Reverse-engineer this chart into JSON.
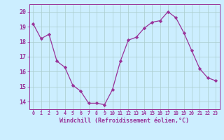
{
  "x": [
    0,
    1,
    2,
    3,
    4,
    5,
    6,
    7,
    8,
    9,
    10,
    11,
    12,
    13,
    14,
    15,
    16,
    17,
    18,
    19,
    20,
    21,
    22,
    23
  ],
  "y": [
    19.2,
    18.2,
    18.5,
    16.7,
    16.3,
    15.1,
    14.7,
    13.9,
    13.9,
    13.8,
    14.8,
    16.7,
    18.1,
    18.3,
    18.9,
    19.3,
    19.4,
    20.0,
    19.6,
    18.6,
    17.4,
    16.2,
    15.6,
    15.4
  ],
  "xlabel": "Windchill (Refroidissement éolien,°C)",
  "ylim": [
    13.5,
    20.5
  ],
  "yticks": [
    14,
    15,
    16,
    17,
    18,
    19,
    20
  ],
  "xticks": [
    0,
    1,
    2,
    3,
    4,
    5,
    6,
    7,
    8,
    9,
    10,
    11,
    12,
    13,
    14,
    15,
    16,
    17,
    18,
    19,
    20,
    21,
    22,
    23
  ],
  "xtick_labels": [
    "0",
    "1",
    "2",
    "3",
    "4",
    "5",
    "6",
    "7",
    "8",
    "9",
    "10",
    "11",
    "12",
    "13",
    "14",
    "15",
    "16",
    "17",
    "18",
    "19",
    "20",
    "21",
    "22",
    "23"
  ],
  "line_color": "#993399",
  "marker": "D",
  "marker_size": 2.2,
  "bg_color": "#cceeff",
  "grid_color": "#aacccc",
  "xlabel_fontsize": 6.0,
  "xtick_fontsize": 4.8,
  "ytick_fontsize": 6.0
}
